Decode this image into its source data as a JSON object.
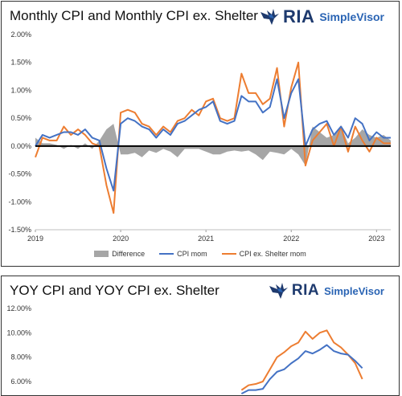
{
  "brand": {
    "ria": "RIA",
    "simplevisor": "SimpleVisor"
  },
  "colors": {
    "cpi": "#4472c4",
    "cpi_ex_shelter": "#ed7d31",
    "difference": "#a6a6a6",
    "zero_line": "#000000",
    "brand_dark": "#1e3a6e",
    "brand_light": "#2a64b4"
  },
  "icons": {
    "logo": "eagle-logo-icon"
  },
  "chart_data": [
    {
      "type": "line",
      "title": "Monthly CPI and Monthly CPI ex. Shelter",
      "xlabel": "",
      "ylabel": "",
      "x_tick_labels": [
        "2019",
        "2020",
        "2021",
        "2022",
        "2023"
      ],
      "y_tick_labels": [
        "2.00%",
        "1.50%",
        "1.00%",
        "0.50%",
        "0.00%",
        "-0.50%",
        "-1.00%",
        "-1.50%"
      ],
      "ylim": [
        -1.5,
        2.0
      ],
      "legend_placement": "bottom",
      "x": [
        "2019-01",
        "2019-02",
        "2019-03",
        "2019-04",
        "2019-05",
        "2019-06",
        "2019-07",
        "2019-08",
        "2019-09",
        "2019-10",
        "2019-11",
        "2019-12",
        "2020-01",
        "2020-02",
        "2020-03",
        "2020-04",
        "2020-05",
        "2020-06",
        "2020-07",
        "2020-08",
        "2020-09",
        "2020-10",
        "2020-11",
        "2020-12",
        "2021-01",
        "2021-02",
        "2021-03",
        "2021-04",
        "2021-05",
        "2021-06",
        "2021-07",
        "2021-08",
        "2021-09",
        "2021-10",
        "2021-11",
        "2021-12",
        "2022-01",
        "2022-02",
        "2022-03",
        "2022-04",
        "2022-05",
        "2022-06",
        "2022-07",
        "2022-08",
        "2022-09",
        "2022-10",
        "2022-11",
        "2022-12",
        "2023-01",
        "2023-02",
        "2023-03"
      ],
      "series": [
        {
          "name": "Difference",
          "type": "area",
          "values": [
            0.15,
            0.05,
            0.05,
            0.02,
            -0.05,
            0.02,
            -0.05,
            0.05,
            -0.05,
            0.1,
            0.3,
            0.4,
            -0.15,
            -0.15,
            -0.12,
            -0.2,
            -0.08,
            -0.12,
            -0.05,
            -0.1,
            -0.2,
            -0.05,
            -0.05,
            -0.05,
            -0.1,
            -0.15,
            -0.15,
            -0.1,
            -0.08,
            -0.1,
            -0.08,
            -0.15,
            -0.25,
            -0.1,
            -0.12,
            -0.15,
            -0.05,
            -0.15,
            -0.35,
            0.35,
            0.25,
            0.15,
            0.2,
            0.35,
            0.05,
            0.15,
            0.3,
            0.2,
            0.15,
            0.2,
            0.1
          ]
        },
        {
          "name": "CPI mom",
          "values": [
            0.0,
            0.2,
            0.15,
            0.2,
            0.25,
            0.25,
            0.2,
            0.3,
            0.15,
            0.1,
            -0.4,
            -0.8,
            0.4,
            0.5,
            0.45,
            0.35,
            0.3,
            0.15,
            0.3,
            0.2,
            0.4,
            0.45,
            0.55,
            0.65,
            0.7,
            0.8,
            0.45,
            0.4,
            0.45,
            0.9,
            0.8,
            0.8,
            0.6,
            0.7,
            1.2,
            0.5,
            0.95,
            1.2,
            0.0,
            0.3,
            0.4,
            0.45,
            0.2,
            0.35,
            0.15,
            0.5,
            0.4,
            0.1,
            0.25,
            0.15,
            0.15
          ]
        },
        {
          "name": "CPI ex. Shelter mom",
          "values": [
            -0.2,
            0.15,
            0.1,
            0.1,
            0.35,
            0.2,
            0.3,
            0.2,
            0.05,
            0.0,
            -0.7,
            -1.2,
            0.6,
            0.65,
            0.6,
            0.4,
            0.35,
            0.2,
            0.35,
            0.25,
            0.45,
            0.5,
            0.65,
            0.55,
            0.8,
            0.85,
            0.5,
            0.45,
            0.5,
            1.3,
            0.95,
            0.95,
            0.75,
            0.85,
            1.4,
            0.35,
            1.05,
            1.5,
            -0.35,
            0.1,
            0.25,
            0.4,
            0.0,
            0.35,
            -0.1,
            0.35,
            0.1,
            -0.1,
            0.15,
            0.05,
            0.05
          ]
        }
      ]
    },
    {
      "type": "line",
      "title": "YOY CPI and YOY CPI ex. Shelter",
      "xlabel": "",
      "ylabel": "",
      "y_tick_labels": [
        "12.00%",
        "10.00%",
        "8.00%",
        "6.00%"
      ],
      "ylim": [
        4.0,
        12.0
      ],
      "x": [
        "2021-06",
        "2021-07",
        "2021-08",
        "2021-09",
        "2021-10",
        "2021-11",
        "2021-12",
        "2022-01",
        "2022-02",
        "2022-03",
        "2022-04",
        "2022-05",
        "2022-06",
        "2022-07",
        "2022-08",
        "2022-09",
        "2022-10",
        "2022-11"
      ],
      "series": [
        {
          "name": "CPI",
          "values": [
            5.0,
            5.3,
            5.3,
            5.4,
            6.2,
            6.8,
            7.0,
            7.5,
            7.9,
            8.5,
            8.3,
            8.6,
            9.0,
            8.5,
            8.3,
            8.2,
            7.7,
            7.1
          ]
        },
        {
          "name": "CPI ex. Shelter",
          "values": [
            5.3,
            5.7,
            5.8,
            6.0,
            7.0,
            8.0,
            8.4,
            8.9,
            9.2,
            10.1,
            9.5,
            10.0,
            10.2,
            9.2,
            8.8,
            8.2,
            7.5,
            6.2
          ]
        }
      ]
    }
  ],
  "legend": {
    "difference": "Difference",
    "cpi_mom": "CPI mom",
    "cpi_ex_shelter_mom": "CPI ex. Shelter mom"
  }
}
